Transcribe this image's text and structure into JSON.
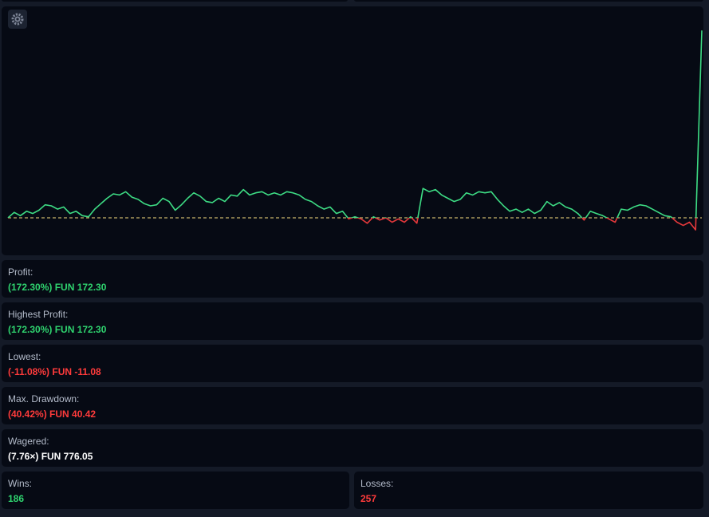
{
  "chart_data": {
    "type": "line",
    "values": [
      0,
      5,
      2,
      6,
      4,
      7,
      12,
      11,
      8,
      10,
      4,
      6,
      2,
      1,
      8,
      13,
      18,
      22,
      21,
      24,
      19,
      17,
      13,
      11,
      12,
      18,
      15,
      7,
      12,
      18,
      23,
      20,
      15,
      14,
      18,
      15,
      21,
      20,
      26,
      21,
      23,
      24,
      21,
      23,
      21,
      24,
      23,
      21,
      17,
      15,
      11,
      8,
      10,
      4,
      6,
      -1,
      1,
      -1,
      -5,
      1,
      -2,
      0,
      -4,
      -1,
      -4,
      1,
      -5,
      27,
      24,
      26,
      21,
      18,
      15,
      17,
      23,
      21,
      24,
      23,
      24,
      17,
      11,
      6,
      8,
      5,
      8,
      4,
      7,
      15,
      11,
      14,
      10,
      8,
      4,
      -2,
      6,
      4,
      2,
      -1,
      -4,
      8,
      7,
      10,
      12,
      11,
      8,
      5,
      2,
      1,
      -4,
      -7,
      -4,
      -11.08,
      172.3
    ],
    "ylim": [
      -33,
      193
    ],
    "colors": {
      "above": "#3ddc84",
      "below": "#e5383b",
      "baseline": "#c8b46a"
    }
  },
  "stats": [
    {
      "label": "Profit:",
      "value": "(172.30%) FUN 172.30",
      "color": "#2fd46f"
    },
    {
      "label": "Highest Profit:",
      "value": "(172.30%) FUN 172.30",
      "color": "#2fd46f"
    },
    {
      "label": "Lowest:",
      "value": "(-11.08%) FUN -11.08",
      "color": "#ff3b3b"
    },
    {
      "label": "Max. Drawdown:",
      "value": "(40.42%) FUN 40.42",
      "color": "#ff3b3b"
    },
    {
      "label": "Wagered:",
      "value": "(7.76×) FUN 776.05",
      "color": "#ffffff"
    }
  ],
  "counts": [
    {
      "label": "Wins:",
      "value": 186,
      "color": "#2fd46f"
    },
    {
      "label": "Losses:",
      "value": 257,
      "color": "#ff3b3b"
    }
  ]
}
